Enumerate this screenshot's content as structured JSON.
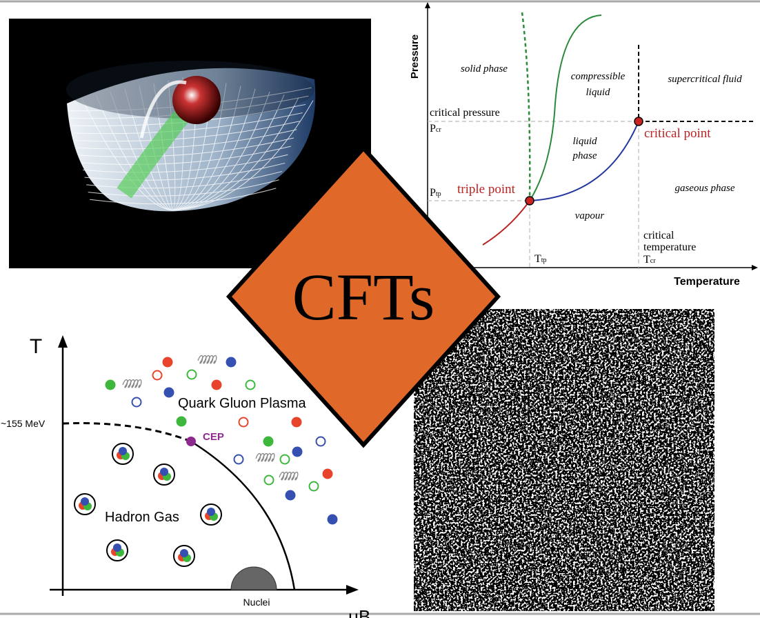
{
  "center_label": "CFTs",
  "phase_diagram": {
    "y_axis": "Pressure",
    "x_axis": "Temperature",
    "solid": "solid phase",
    "compressible": [
      "compressible",
      "liquid"
    ],
    "supercritical": "supercritical fluid",
    "critical_pressure": "critical pressure",
    "p_cr": {
      "main": "P",
      "sub": "cr"
    },
    "liquid": [
      "liquid",
      "phase"
    ],
    "critical_point": "critical point",
    "triple_point": "triple point",
    "p_tp": {
      "main": "P",
      "sub": "tp"
    },
    "gaseous": "gaseous phase",
    "vapour": "vapour",
    "t_tp": {
      "main": "T",
      "sub": "tp"
    },
    "critical_temperature": [
      "critical",
      "temperature"
    ],
    "t_cr": {
      "main": "T",
      "sub": "cr"
    }
  },
  "qcd_diagram": {
    "y_axis": "T",
    "temperature_mark": "~155 MeV",
    "qgp": "Quark Gluon Plasma",
    "cep": "CEP",
    "hadron": "Hadron Gas",
    "nuclei": "Nuclei",
    "x_axis": "μB"
  }
}
